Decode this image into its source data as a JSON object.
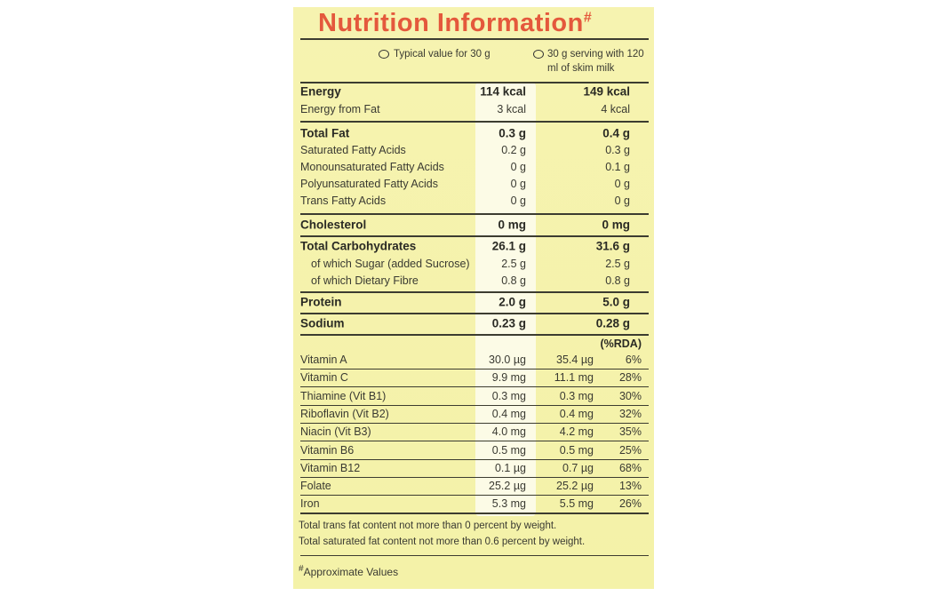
{
  "header": {
    "title": "Nutrition Information",
    "title_mark": "#"
  },
  "columns": [
    "Typical value for 30 g",
    "30 g serving with 120 ml of skim milk"
  ],
  "sections": [
    {
      "rows": [
        {
          "label": "Energy",
          "values": [
            "114 kcal",
            "149 kcal"
          ]
        },
        {
          "label": "Energy from Fat",
          "values": [
            "3 kcal",
            "4 kcal"
          ]
        }
      ]
    },
    {
      "rows": [
        {
          "label": "Total Fat",
          "values": [
            "0.3 g",
            "0.4 g"
          ]
        },
        {
          "label": "Saturated Fatty Acids",
          "values": [
            "0.2 g",
            "0.3 g"
          ]
        },
        {
          "label": "Monounsaturated Fatty Acids",
          "values": [
            "0 g",
            "0.1 g"
          ]
        },
        {
          "label": "Polyunsaturated Fatty Acids",
          "values": [
            "0 g",
            "0 g"
          ]
        },
        {
          "label": "Trans Fatty Acids",
          "values": [
            "0 g",
            "0 g"
          ]
        }
      ]
    },
    {
      "rows": [
        {
          "label": "Cholesterol",
          "values": [
            "0 mg",
            "0 mg"
          ]
        }
      ]
    },
    {
      "rows": [
        {
          "label": "Total Carbohydrates",
          "values": [
            "26.1 g",
            "31.6 g"
          ]
        },
        {
          "label": "of which Sugar (added Sucrose)",
          "values": [
            "2.5 g",
            "2.5 g"
          ]
        },
        {
          "label": "of which Dietary Fibre",
          "values": [
            "0.8 g",
            "0.8 g"
          ]
        }
      ]
    },
    {
      "rows": [
        {
          "label": "Protein",
          "values": [
            "2.0 g",
            "5.0 g"
          ]
        }
      ]
    },
    {
      "rows": [
        {
          "label": "Sodium",
          "values": [
            "0.23 g",
            "0.28 g"
          ]
        }
      ]
    }
  ],
  "rda_header": "(%RDA)",
  "vitamins": [
    {
      "label": "Vitamin A",
      "values": [
        "30.0 µg",
        "35.4 µg",
        "6%"
      ]
    },
    {
      "label": "Vitamin C",
      "values": [
        "9.9 mg",
        "11.1 mg",
        "28%"
      ]
    },
    {
      "label": "Thiamine (Vit B1)",
      "values": [
        "0.3 mg",
        "0.3 mg",
        "30%"
      ]
    },
    {
      "label": "Riboflavin (Vit B2)",
      "values": [
        "0.4 mg",
        "0.4 mg",
        "32%"
      ]
    },
    {
      "label": "Niacin (Vit B3)",
      "values": [
        "4.0 mg",
        "4.2 mg",
        "35%"
      ]
    },
    {
      "label": "Vitamin B6",
      "values": [
        "0.5 mg",
        "0.5 mg",
        "25%"
      ]
    },
    {
      "label": "Vitamin B12",
      "values": [
        "0.1 µg",
        "0.7 µg",
        "68%"
      ]
    },
    {
      "label": "Folate",
      "values": [
        "25.2 µg",
        "25.2 µg",
        "13%"
      ]
    },
    {
      "label": "Iron",
      "values": [
        "5.3 mg",
        "5.5 mg",
        "26%"
      ]
    }
  ],
  "notes": [
    "Total trans fat content not more than 0 percent by weight.",
    "Total saturated fat content not more than 0.6 percent by weight."
  ],
  "footnote": {
    "mark": "#",
    "text": "Approximate Values"
  }
}
